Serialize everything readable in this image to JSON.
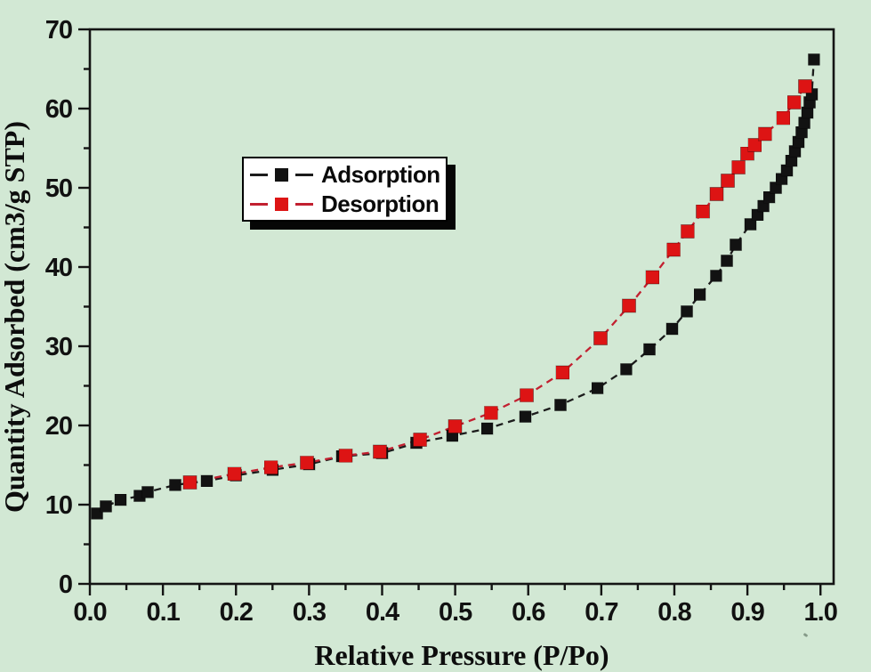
{
  "figure": {
    "background_color": "#d2e8d4",
    "frame_color": "#141414"
  },
  "chart_data": {
    "type": "line",
    "title": "",
    "xlabel": "Relative Pressure (P/Po)",
    "ylabel": "Quantity Adsorbed (cm3/g STP)",
    "xlim": [
      0,
      1.018
    ],
    "ylim": [
      0,
      70
    ],
    "grid": false,
    "legend_position": "upper-left-inside",
    "x_major_ticks": [
      0.0,
      0.1,
      0.2,
      0.3,
      0.4,
      0.5,
      0.6,
      0.7,
      0.8,
      0.9,
      1.0
    ],
    "x_tick_labels": [
      "0.0",
      "0.1",
      "0.2",
      "0.3",
      "0.4",
      "0.5",
      "0.6",
      "0.7",
      "0.8",
      "0.9",
      "1.0"
    ],
    "x_minor_step": 0.05,
    "y_major_ticks": [
      0,
      10,
      20,
      30,
      40,
      50,
      60,
      70
    ],
    "y_tick_labels": [
      "0",
      "10",
      "20",
      "30",
      "40",
      "50",
      "60",
      "70"
    ],
    "y_minor_step": 5,
    "series": [
      {
        "name": "Adsorption",
        "marker": "square",
        "marker_size": 13,
        "color": "#121212",
        "line_color": "#1c1c1c",
        "line_style": "dashed",
        "points": [
          [
            0.01,
            8.9
          ],
          [
            0.022,
            9.8
          ],
          [
            0.042,
            10.6
          ],
          [
            0.068,
            11.1
          ],
          [
            0.079,
            11.6
          ],
          [
            0.117,
            12.5
          ],
          [
            0.16,
            13.0
          ],
          [
            0.2,
            13.7
          ],
          [
            0.25,
            14.4
          ],
          [
            0.3,
            15.1
          ],
          [
            0.345,
            16.1
          ],
          [
            0.4,
            16.5
          ],
          [
            0.447,
            17.8
          ],
          [
            0.496,
            18.7
          ],
          [
            0.544,
            19.6
          ],
          [
            0.596,
            21.1
          ],
          [
            0.644,
            22.6
          ],
          [
            0.695,
            24.7
          ],
          [
            0.734,
            27.1
          ],
          [
            0.766,
            29.6
          ],
          [
            0.797,
            32.2
          ],
          [
            0.817,
            34.4
          ],
          [
            0.835,
            36.5
          ],
          [
            0.857,
            38.9
          ],
          [
            0.872,
            40.8
          ],
          [
            0.884,
            42.8
          ],
          [
            0.904,
            45.4
          ],
          [
            0.914,
            46.6
          ],
          [
            0.922,
            47.7
          ],
          [
            0.93,
            48.8
          ],
          [
            0.939,
            50.0
          ],
          [
            0.947,
            51.1
          ],
          [
            0.954,
            52.2
          ],
          [
            0.96,
            53.4
          ],
          [
            0.965,
            54.6
          ],
          [
            0.97,
            55.8
          ],
          [
            0.974,
            57.0
          ],
          [
            0.978,
            58.2
          ],
          [
            0.982,
            59.5
          ],
          [
            0.985,
            60.8
          ],
          [
            0.988,
            61.8
          ],
          [
            0.991,
            66.2
          ]
        ]
      },
      {
        "name": "Desorption",
        "marker": "square",
        "marker_size": 15,
        "color": "#dd1414",
        "line_color": "#c22030",
        "line_style": "dashed",
        "points": [
          [
            0.137,
            12.8
          ],
          [
            0.198,
            13.9
          ],
          [
            0.248,
            14.7
          ],
          [
            0.297,
            15.3
          ],
          [
            0.35,
            16.2
          ],
          [
            0.397,
            16.7
          ],
          [
            0.452,
            18.2
          ],
          [
            0.5,
            19.9
          ],
          [
            0.549,
            21.6
          ],
          [
            0.598,
            23.8
          ],
          [
            0.647,
            26.7
          ],
          [
            0.699,
            31.0
          ],
          [
            0.738,
            35.1
          ],
          [
            0.77,
            38.7
          ],
          [
            0.799,
            42.2
          ],
          [
            0.818,
            44.5
          ],
          [
            0.839,
            47.0
          ],
          [
            0.858,
            49.2
          ],
          [
            0.873,
            50.9
          ],
          [
            0.888,
            52.6
          ],
          [
            0.9,
            54.3
          ],
          [
            0.91,
            55.4
          ],
          [
            0.924,
            56.8
          ],
          [
            0.949,
            58.8
          ],
          [
            0.964,
            60.8
          ],
          [
            0.979,
            62.8
          ]
        ]
      }
    ]
  },
  "legend": {
    "entries": [
      {
        "label": "Adsorption"
      },
      {
        "label": "Desorption"
      }
    ]
  }
}
